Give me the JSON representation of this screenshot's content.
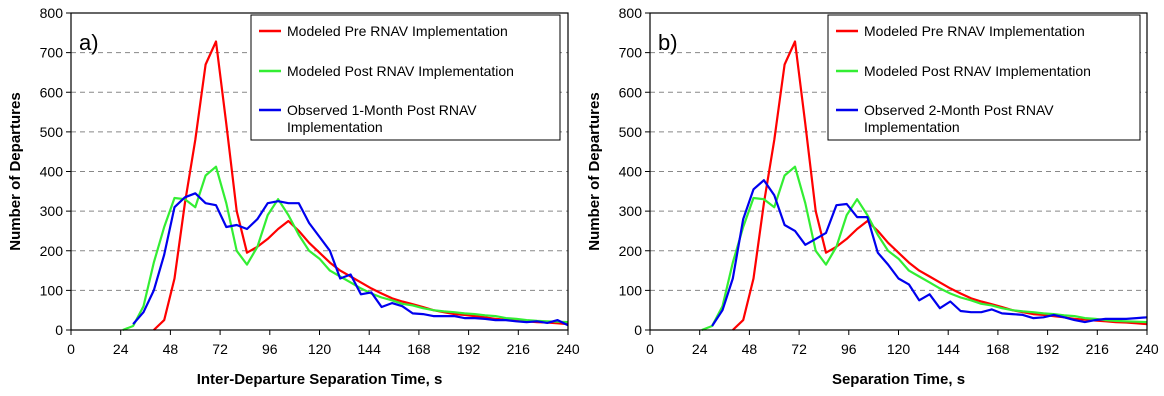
{
  "chart_data": [
    {
      "type": "line",
      "panel_label": "a)",
      "xlabel": "Inter-Departure Separation Time, s",
      "ylabel": "Number of Departures",
      "xlim": [
        0,
        240
      ],
      "ylim": [
        0,
        800
      ],
      "xticks": [
        0,
        24,
        48,
        72,
        96,
        120,
        144,
        168,
        192,
        216,
        240
      ],
      "yticks": [
        0,
        100,
        200,
        300,
        400,
        500,
        600,
        700,
        800
      ],
      "grid": "horizontal dashed",
      "legend_position": "top-right",
      "series": [
        {
          "name": "Modeled Pre RNAV Implementation",
          "color": "#ff0000",
          "x": [
            40,
            45,
            50,
            55,
            60,
            65,
            70,
            75,
            80,
            85,
            90,
            95,
            100,
            105,
            110,
            115,
            120,
            125,
            130,
            135,
            140,
            145,
            150,
            155,
            160,
            165,
            170,
            175,
            180,
            185,
            190,
            195,
            200,
            205,
            210,
            215,
            220,
            225,
            230,
            235,
            240
          ],
          "y": [
            0,
            25,
            130,
            320,
            480,
            670,
            728,
            520,
            300,
            195,
            210,
            230,
            255,
            275,
            250,
            220,
            195,
            170,
            150,
            135,
            120,
            105,
            92,
            80,
            72,
            65,
            58,
            50,
            45,
            40,
            38,
            35,
            32,
            28,
            26,
            24,
            22,
            20,
            19,
            17,
            15
          ]
        },
        {
          "name": "Modeled Post RNAV Implementation",
          "color": "#33ee33",
          "x": [
            25,
            30,
            35,
            40,
            45,
            50,
            55,
            60,
            65,
            70,
            75,
            80,
            85,
            90,
            95,
            100,
            105,
            110,
            115,
            120,
            125,
            130,
            135,
            140,
            145,
            150,
            155,
            160,
            165,
            170,
            175,
            180,
            185,
            190,
            195,
            200,
            205,
            210,
            215,
            220,
            225,
            230,
            235,
            240
          ],
          "y": [
            0,
            10,
            60,
            170,
            260,
            333,
            330,
            310,
            390,
            412,
            320,
            200,
            165,
            210,
            290,
            330,
            290,
            240,
            200,
            180,
            150,
            135,
            120,
            105,
            92,
            82,
            75,
            66,
            62,
            55,
            50,
            47,
            45,
            42,
            40,
            37,
            35,
            30,
            28,
            25,
            23,
            22,
            21,
            20
          ]
        },
        {
          "name": "Observed 1-Month Post RNAV Implementation",
          "color": "#0000ee",
          "x": [
            30,
            35,
            40,
            45,
            50,
            55,
            60,
            65,
            70,
            75,
            80,
            85,
            90,
            95,
            100,
            105,
            110,
            115,
            120,
            125,
            130,
            135,
            140,
            145,
            150,
            155,
            160,
            165,
            170,
            175,
            180,
            185,
            190,
            195,
            200,
            205,
            210,
            215,
            220,
            225,
            230,
            235,
            240
          ],
          "y": [
            15,
            45,
            100,
            190,
            310,
            335,
            345,
            320,
            315,
            260,
            265,
            255,
            280,
            320,
            325,
            320,
            320,
            270,
            235,
            200,
            130,
            140,
            90,
            95,
            58,
            68,
            60,
            42,
            40,
            35,
            35,
            35,
            30,
            30,
            28,
            25,
            25,
            22,
            20,
            22,
            18,
            25,
            12
          ]
        }
      ]
    },
    {
      "type": "line",
      "panel_label": "b)",
      "xlabel": "Separation Time, s",
      "ylabel": "Number of Departures",
      "xlim": [
        0,
        240
      ],
      "ylim": [
        0,
        800
      ],
      "xticks": [
        0,
        24,
        48,
        72,
        96,
        120,
        144,
        168,
        192,
        216,
        240
      ],
      "yticks": [
        0,
        100,
        200,
        300,
        400,
        500,
        600,
        700,
        800
      ],
      "grid": "horizontal dashed",
      "legend_position": "top-right",
      "series": [
        {
          "name": "Modeled Pre RNAV Implementation",
          "color": "#ff0000",
          "x": [
            40,
            45,
            50,
            55,
            60,
            65,
            70,
            75,
            80,
            85,
            90,
            95,
            100,
            105,
            110,
            115,
            120,
            125,
            130,
            135,
            140,
            145,
            150,
            155,
            160,
            165,
            170,
            175,
            180,
            185,
            190,
            195,
            200,
            205,
            210,
            215,
            220,
            225,
            230,
            235,
            240
          ],
          "y": [
            0,
            25,
            130,
            320,
            480,
            670,
            728,
            520,
            300,
            195,
            210,
            230,
            255,
            275,
            250,
            220,
            195,
            170,
            150,
            135,
            120,
            105,
            92,
            80,
            72,
            65,
            58,
            50,
            45,
            40,
            38,
            35,
            32,
            28,
            26,
            24,
            22,
            20,
            19,
            17,
            15
          ]
        },
        {
          "name": "Modeled Post RNAV Implementation",
          "color": "#33ee33",
          "x": [
            25,
            30,
            35,
            40,
            45,
            50,
            55,
            60,
            65,
            70,
            75,
            80,
            85,
            90,
            95,
            100,
            105,
            110,
            115,
            120,
            125,
            130,
            135,
            140,
            145,
            150,
            155,
            160,
            165,
            170,
            175,
            180,
            185,
            190,
            195,
            200,
            205,
            210,
            215,
            220,
            225,
            230,
            235,
            240
          ],
          "y": [
            0,
            10,
            60,
            170,
            260,
            333,
            330,
            310,
            390,
            412,
            320,
            200,
            165,
            210,
            290,
            330,
            290,
            240,
            200,
            180,
            150,
            135,
            120,
            105,
            92,
            82,
            75,
            66,
            62,
            55,
            50,
            47,
            45,
            42,
            40,
            37,
            35,
            30,
            28,
            25,
            23,
            22,
            21,
            20
          ]
        },
        {
          "name": "Observed 2-Month Post RNAV Implementation",
          "color": "#0000ee",
          "x": [
            30,
            35,
            40,
            45,
            50,
            55,
            60,
            65,
            70,
            75,
            80,
            85,
            90,
            95,
            100,
            105,
            110,
            115,
            120,
            125,
            130,
            135,
            140,
            145,
            150,
            155,
            160,
            165,
            170,
            175,
            180,
            185,
            190,
            195,
            200,
            205,
            210,
            215,
            220,
            225,
            230,
            235,
            240
          ],
          "y": [
            10,
            50,
            130,
            280,
            355,
            378,
            340,
            265,
            250,
            215,
            230,
            245,
            315,
            318,
            285,
            285,
            195,
            165,
            130,
            115,
            75,
            90,
            55,
            72,
            48,
            45,
            45,
            52,
            42,
            40,
            38,
            30,
            32,
            38,
            32,
            25,
            20,
            25,
            28,
            28,
            28,
            30,
            32
          ]
        }
      ]
    }
  ]
}
